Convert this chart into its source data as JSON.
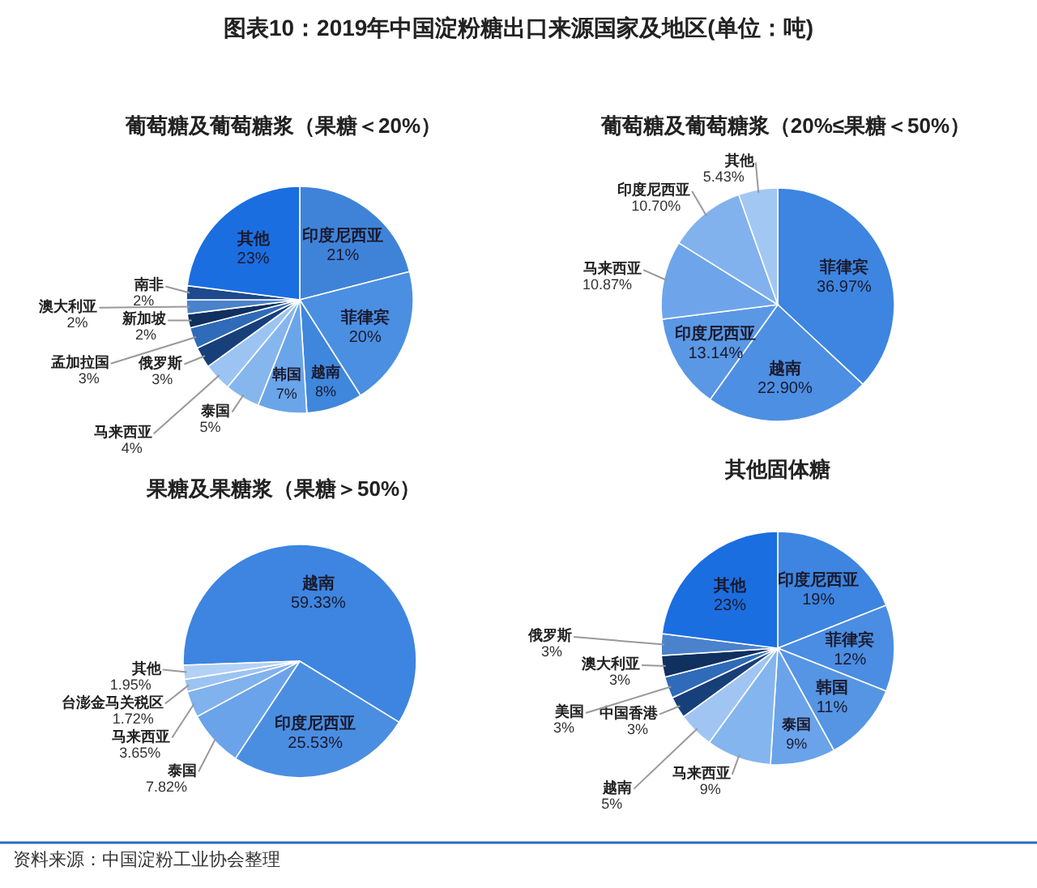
{
  "chart_data": [
    {
      "type": "pie",
      "title": "葡萄糖及葡萄糖浆（果糖＜20%）",
      "annotations": [
        "图表10：2019年中国淀粉糖出口来源国家及地区(单位：吨)",
        "资料来源：中国淀粉工业协会整理"
      ],
      "categories": [
        "印度尼西亚",
        "菲律宾",
        "越南",
        "韩国",
        "泰国",
        "马来西亚",
        "俄罗斯",
        "孟加拉国",
        "新加坡",
        "澳大利亚",
        "南非",
        "其他"
      ],
      "values": [
        21,
        20,
        8,
        7,
        5,
        4,
        3,
        3,
        2,
        2,
        2,
        23
      ],
      "value_labels": [
        "21%",
        "20%",
        "8%",
        "7%",
        "5%",
        "4%",
        "3%",
        "3%",
        "2%",
        "2%",
        "2%",
        "23%"
      ],
      "colors": [
        "#3f83d9",
        "#4a8fe2",
        "#3f87dc",
        "#6aa5ea",
        "#86b6ee",
        "#9cc4f2",
        "#173f7a",
        "#2f6bb8",
        "#10305f",
        "#4a82cc",
        "#1c4a8c",
        "#1b6ee0"
      ]
    },
    {
      "type": "pie",
      "title": "葡萄糖及葡萄糖浆（20%≤果糖＜50%）",
      "categories": [
        "菲律宾",
        "越南",
        "印度尼西亚",
        "马来西亚",
        "印度尼西亚",
        "其他"
      ],
      "values": [
        36.97,
        22.9,
        13.14,
        10.87,
        10.7,
        5.43
      ],
      "value_labels": [
        "36.97%",
        "22.90%",
        "13.14%",
        "10.87%",
        "10.70%",
        "5.43%"
      ],
      "colors": [
        "#3d85e0",
        "#4d8fe3",
        "#5a98e5",
        "#6ea5ea",
        "#82b2ee",
        "#a3c7f3"
      ]
    },
    {
      "type": "pie",
      "title": "果糖及果糖浆（果糖＞50%）",
      "categories": [
        "越南",
        "印度尼西亚",
        "泰国",
        "马来西亚",
        "台澎金马关税区",
        "其他"
      ],
      "values": [
        59.33,
        25.53,
        7.82,
        3.65,
        1.72,
        1.95
      ],
      "value_labels": [
        "59.33%",
        "25.53%",
        "7.82%",
        "3.65%",
        "1.72%",
        "1.95%"
      ],
      "colors": [
        "#3d85e0",
        "#4a8ee2",
        "#6aa3ea",
        "#80b2ee",
        "#9cc3f2",
        "#b3d1f5"
      ]
    },
    {
      "type": "pie",
      "title": "其他固体糖",
      "categories": [
        "印度尼西亚",
        "菲律宾",
        "韩国",
        "泰国",
        "马来西亚",
        "越南",
        "中国香港",
        "美国",
        "澳大利亚",
        "俄罗斯",
        "其他"
      ],
      "values": [
        19,
        12,
        11,
        9,
        9,
        5,
        3,
        3,
        3,
        3,
        23
      ],
      "value_labels": [
        "19%",
        "12%",
        "11%",
        "9%",
        "9%",
        "5%",
        "3%",
        "3%",
        "3%",
        "3%",
        "23%"
      ],
      "colors": [
        "#3d85e0",
        "#4a8de2",
        "#5595e4",
        "#6aa3ea",
        "#85b5ee",
        "#a0c5f2",
        "#173f7a",
        "#2f6bb8",
        "#10305f",
        "#4a82cc",
        "#1b6ee0"
      ]
    }
  ]
}
